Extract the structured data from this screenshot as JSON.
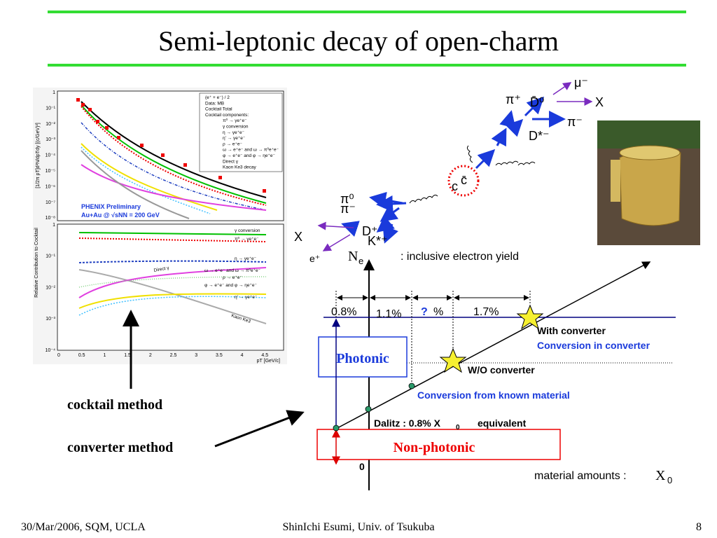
{
  "title": "Semi-leptonic decay of open-charm",
  "footer": {
    "date": "30/Mar/2006, SQM, UCLA",
    "author": "ShinIchi Esumi, Univ. of Tsukuba",
    "page": "8"
  },
  "methods": [
    "cocktail method",
    "converter method"
  ],
  "plot": {
    "top_y_title": "[1/2π pT]d²N/dpTdy [(c/GeV)²]",
    "bottom_y_title": "Relative Contribution to Cocktail",
    "x_title": "pT [GeV/c]",
    "x_ticks": [
      "0",
      "0.5",
      "1",
      "1.5",
      "2",
      "2.5",
      "3",
      "3.5",
      "4",
      "4.5"
    ],
    "top_y_ticks": [
      "1",
      "10⁻¹",
      "10⁻²",
      "10⁻³",
      "10⁻⁴",
      "10⁻⁵",
      "10⁻⁶",
      "10⁻⁷",
      "10⁻⁸"
    ],
    "bottom_y_ticks": [
      "1",
      "10⁻¹",
      "10⁻²",
      "10⁻³",
      "10⁻⁴"
    ],
    "legend": [
      "(e⁺ + e⁻) / 2",
      "Data: MB",
      "Cocktail Total",
      "Cocktail components:",
      "π⁰ → γe⁺e⁻",
      "γ conversion",
      "η → γe⁺e⁻",
      "η' → γe⁺e⁻",
      "ρ → e⁺e⁻",
      "ω → e⁺e⁻ and ω → π⁰e⁺e⁻",
      "φ → e⁺e⁻ and φ → ηe⁺e⁻",
      "Direct γ",
      "Kaon Ke3 decay"
    ],
    "experiment": "PHENIX Preliminary",
    "system": "Au+Au @ √sNN = 200 GeV",
    "bottom_labels": [
      "γ conversion",
      "π⁰ → γe⁺e⁻",
      "η → γe⁺e⁻",
      "Direct γ",
      "ω → e⁺e⁻ and ω → π⁰e⁺e⁻",
      "ρ → e⁺e⁻",
      "φ → e⁺e⁻ and φ → ηe⁺e⁻",
      "η' → γe⁺e⁻",
      "Kaon Ke3"
    ]
  },
  "decay": {
    "labels": [
      "μ⁻",
      "π⁺",
      "D̄⁰",
      "X",
      "π⁻",
      "D*⁻",
      "c̄",
      "c",
      "π⁰",
      "π⁻",
      "D⁺",
      "K*⁺",
      "X",
      "e⁺"
    ]
  },
  "diagram": {
    "y_axis": "N",
    "y_sub": "e",
    "y_desc": ": inclusive electron yield",
    "x_desc": "material amounts :",
    "x_axis": "X",
    "x_sub": "0",
    "origin": "0",
    "segments": [
      "0.8%",
      "1.1%",
      "?",
      "%",
      "1.7%"
    ],
    "photonic": "Photonic",
    "non_photonic": "Non-photonic",
    "with_converter": "With converter",
    "conversion_in_converter": "Conversion in converter",
    "wo_converter": "W/O converter",
    "known_material": "Conversion from known material",
    "dalitz": "Dalitz : 0.8% X",
    "dalitz_sub": "0",
    "dalitz_end": "equivalent"
  }
}
